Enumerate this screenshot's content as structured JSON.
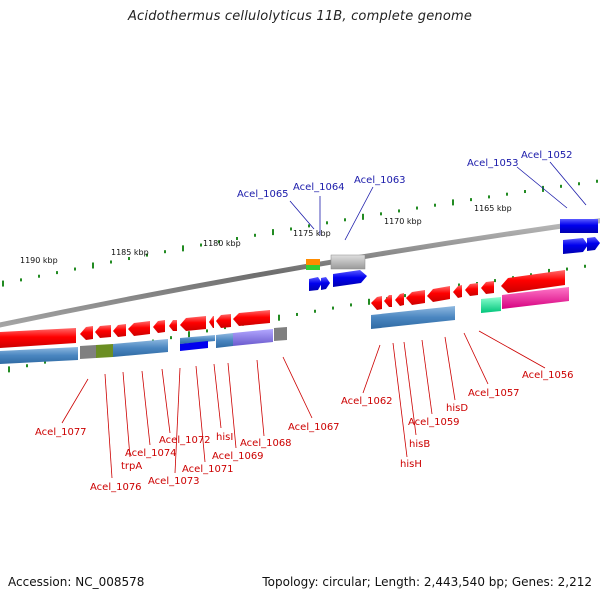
{
  "title": "Acidothermus cellulolyticus 11B, complete genome",
  "footer": {
    "accession": "Accession: NC_008578",
    "summary": "Topology: circular; Length: 2,443,540 bp; Genes: 2,212"
  },
  "scale_labels": [
    "1190 kbp",
    "1185 kbp",
    "1180 kbp",
    "1175 kbp",
    "1170 kbp",
    "1165 kbp"
  ],
  "gene_labels_top": [
    "Acel_1065",
    "Acel_1064",
    "Acel_1063",
    "Acel_1053",
    "Acel_1052"
  ],
  "gene_labels_bottom": [
    "Acel_1077",
    "Acel_1076",
    "trpA",
    "Acel_1074",
    "Acel_1073",
    "Acel_1072",
    "Acel_1071",
    "hisI",
    "Acel_1069",
    "Acel_1068",
    "Acel_1067",
    "Acel_1062",
    "hisH",
    "hisB",
    "Acel_1059",
    "hisD",
    "Acel_1057",
    "Acel_1056"
  ],
  "colors": {
    "forward_gene": "#0000ee",
    "reverse_gene": "#ff0000",
    "backbone": "#7f7f7f",
    "tick": "#228b22",
    "cog_blue": "#4a86c0",
    "cog_olive": "#6b8e23",
    "cog_purple": "#7b68ee",
    "cog_gray": "#a9a9a9",
    "cog_green": "#00e090",
    "cog_magenta": "#ff1493",
    "label_red": "#cc0000",
    "label_blue": "#1a1aaa"
  }
}
